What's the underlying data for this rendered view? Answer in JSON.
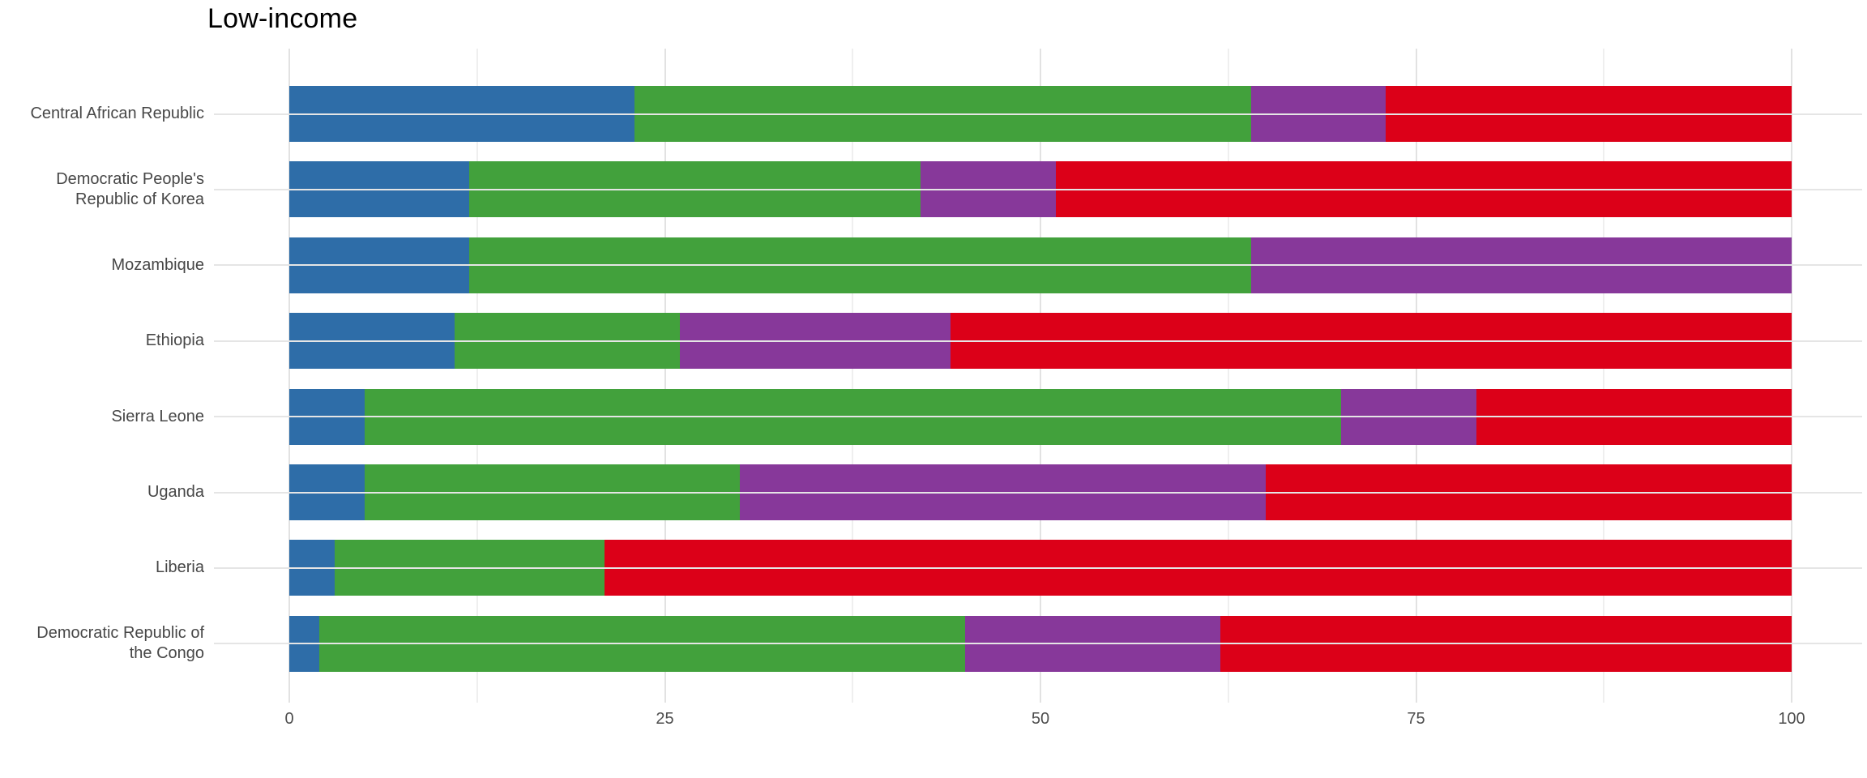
{
  "title": "Low-income",
  "background_color": "#FFFFFF",
  "axis_text_color": "#4D4D4D",
  "gridline_color": "#E2E2E2",
  "chart_data": {
    "type": "bar",
    "orientation": "horizontal",
    "stacked": true,
    "title": "Low-income",
    "xlabel": "",
    "ylabel": "",
    "xlim": [
      0,
      100
    ],
    "x_ticks": [
      0,
      25,
      50,
      75,
      100
    ],
    "grid": {
      "major_x": [
        0,
        25,
        50,
        75,
        100
      ],
      "minor_x": [
        12.5,
        37.5,
        62.5,
        87.5
      ],
      "horizontal_category_lines": true
    },
    "legend": "none",
    "categories": [
      "Central African Republic",
      "Democratic People's Republic of Korea",
      "Mozambique",
      "Ethiopia",
      "Sierra Leone",
      "Uganda",
      "Liberia",
      "Democratic Republic of the Congo"
    ],
    "series": [
      {
        "name": "blue",
        "color": "#2E6DA8",
        "values": [
          23,
          12,
          12,
          11,
          5,
          5,
          3,
          2
        ]
      },
      {
        "name": "green",
        "color": "#42A13C",
        "values": [
          41,
          30,
          52,
          15,
          65,
          25,
          18,
          43
        ]
      },
      {
        "name": "purple",
        "color": "#87389A",
        "values": [
          9,
          9,
          36,
          18,
          9,
          35,
          0,
          17
        ]
      },
      {
        "name": "red",
        "color": "#DC0018",
        "values": [
          27,
          49,
          0,
          56,
          21,
          35,
          79,
          38
        ]
      }
    ]
  }
}
